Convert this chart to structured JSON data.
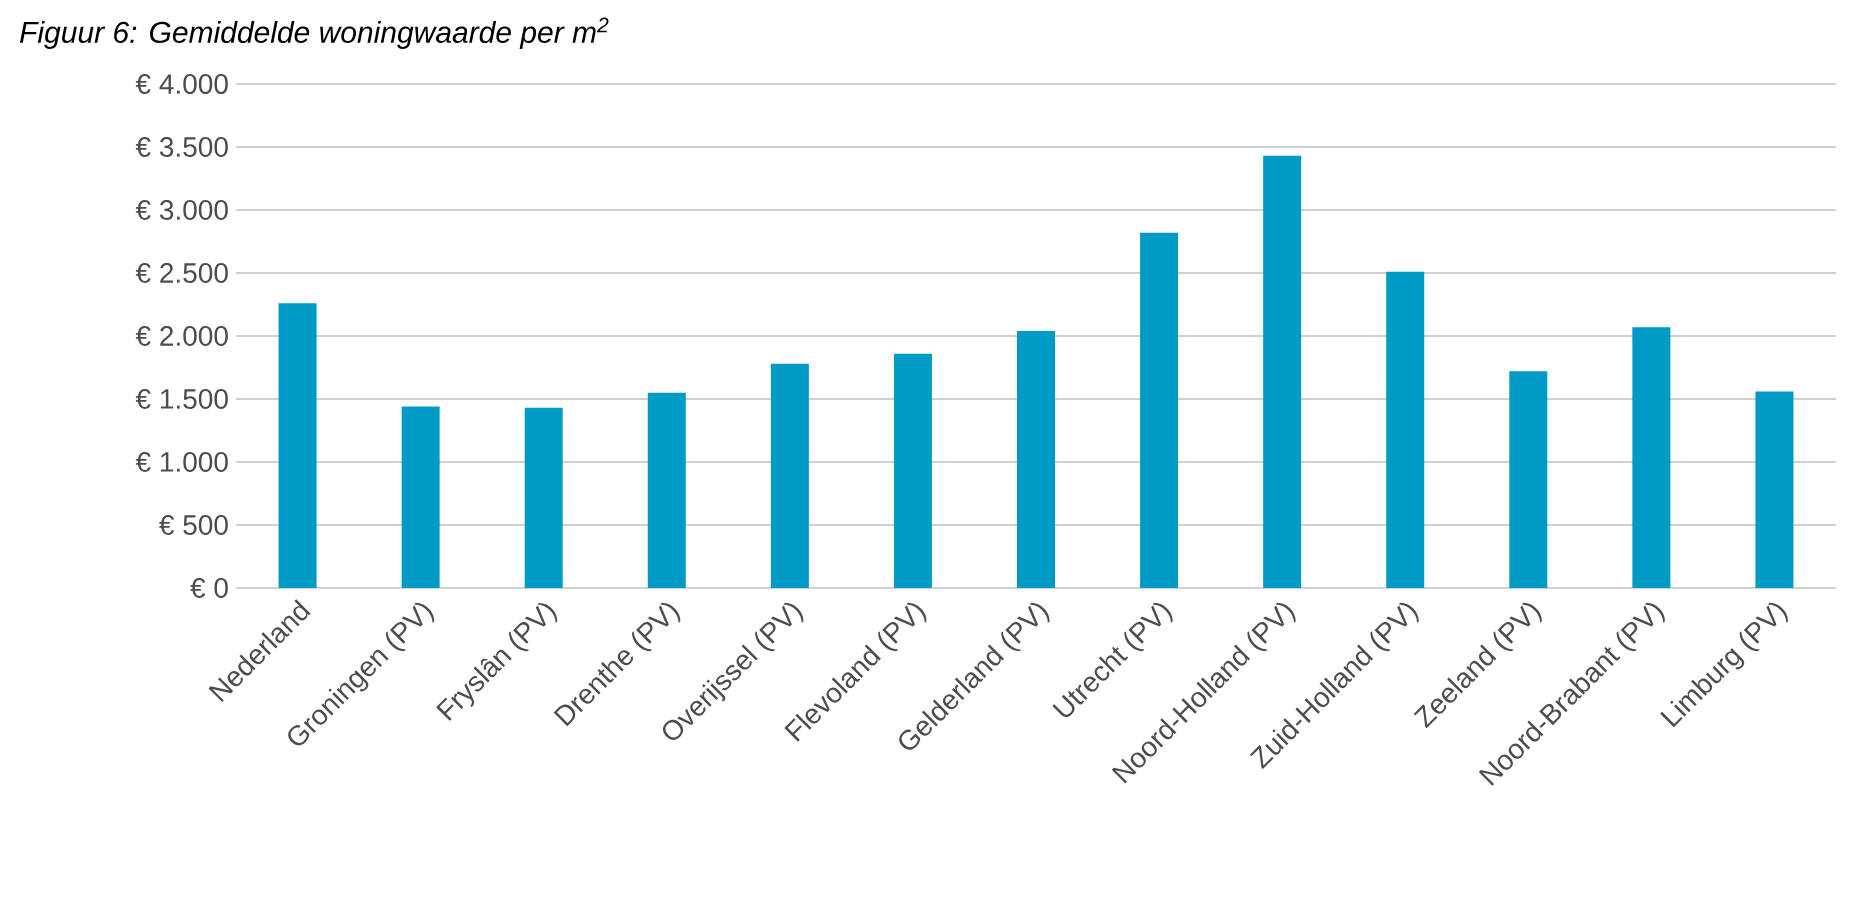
{
  "chart_data": {
    "type": "bar",
    "title": "Figuur 6: Gemiddelde woningwaarde per m$^{2}$",
    "categories": [
      "Nederland",
      "Groningen (PV)",
      "Fryslân (PV)",
      "Drenthe (PV)",
      "Overijssel (PV)",
      "Flevoland (PV)",
      "Gelderland (PV)",
      "Utrecht (PV)",
      "Noord-Holland (PV)",
      "Zuid-Holland (PV)",
      "Zeeland (PV)",
      "Noord-Brabant (PV)",
      "Limburg (PV)"
    ],
    "values": [
      2260,
      1440,
      1430,
      1550,
      1780,
      1860,
      2040,
      2820,
      3430,
      2510,
      1720,
      2070,
      1560
    ],
    "color": "#009bc4",
    "ylim": [
      0,
      4000
    ],
    "yticks": [
      {
        "value": 0,
        "label": "€ 0"
      },
      {
        "value": 500,
        "label": "€ 500"
      },
      {
        "value": 1000,
        "label": "€ 1.000"
      },
      {
        "value": 1500,
        "label": "€ 1.500"
      },
      {
        "value": 2000,
        "label": "€ 2.000"
      },
      {
        "value": 2500,
        "label": "€ 2.500"
      },
      {
        "value": 3000,
        "label": "€ 3.000"
      },
      {
        "value": 3500,
        "label": "€ 3.500"
      },
      {
        "value": 4000,
        "label": "€ 4.000"
      }
    ],
    "grid": "y"
  }
}
